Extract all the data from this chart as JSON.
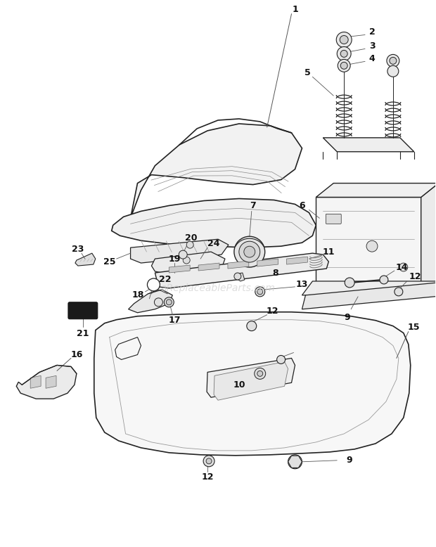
{
  "bg_color": "#ffffff",
  "watermark": "aReplaceableParts.com",
  "fig_width": 6.2,
  "fig_height": 7.78,
  "line_color": "#333333",
  "label_color": "#111111"
}
